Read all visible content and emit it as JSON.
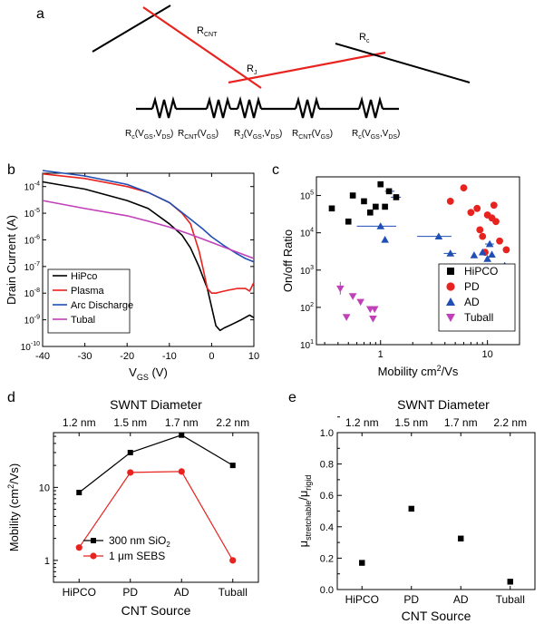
{
  "panel_letters": {
    "a": "a",
    "b": "b",
    "c": "c",
    "d": "d",
    "e": "e"
  },
  "schematic": {
    "resistor_labels": {
      "rc_left": {
        "R": "R",
        "sub": "c",
        "args": "(V",
        "a1": "GS",
        "comma": ",V",
        "a2": "DS",
        "close": ")"
      },
      "rcnt_left": {
        "R": "R",
        "sub": "CNT",
        "args": "(V",
        "a1": "GS",
        "close": ")"
      },
      "rj": {
        "R": "R",
        "sub": "J",
        "args": "(V",
        "a1": "GS",
        "comma": ",V",
        "a2": "DS",
        "close": ")"
      },
      "rcnt_right": {
        "R": "R",
        "sub": "CNT",
        "args": "(V",
        "a1": "GS",
        "close": ")"
      },
      "rc_right": {
        "R": "R",
        "sub": "c",
        "args": "(V",
        "a1": "GS",
        "comma": ",V",
        "a2": "DS",
        "close": ")"
      }
    },
    "tube_labels": {
      "rcnt": {
        "R": "R",
        "sub": "CNT"
      },
      "rj": {
        "R": "R",
        "sub": "J"
      },
      "rc": {
        "R": "R",
        "sub": "c"
      }
    },
    "colors": {
      "tube_red": "#e8231f",
      "tube_black": "#000000"
    }
  },
  "chart_data": [
    {
      "panel": "b",
      "type": "line",
      "xlabel": {
        "main": "V",
        "sub": "GS",
        "unit": " (V)"
      },
      "ylabel": "Drain Current (A)",
      "xlim": [
        -40,
        10
      ],
      "ylim_log10": [
        -10,
        -3.5
      ],
      "xticks": [
        -40,
        -30,
        -20,
        -10,
        0,
        10
      ],
      "yticks": [
        {
          "e": -4,
          "label": "10",
          "exp": "-4"
        },
        {
          "e": -5,
          "label": "10",
          "exp": "-5"
        },
        {
          "e": -6,
          "label": "10",
          "exp": "-6"
        },
        {
          "e": -7,
          "label": "10",
          "exp": "-7"
        },
        {
          "e": -8,
          "label": "10",
          "exp": "-8"
        },
        {
          "e": -9,
          "label": "10",
          "exp": "-9"
        },
        {
          "e": -10,
          "label": "10",
          "exp": "-10"
        }
      ],
      "legend_position": "bottom-left",
      "series": [
        {
          "name": "HiPco",
          "color": "#000000",
          "x": [
            -40,
            -30,
            -20,
            -15,
            -10,
            -7,
            -5,
            -3,
            -1,
            0,
            1,
            2,
            3,
            5,
            7,
            9,
            10
          ],
          "y": [
            0.00015,
            8e-05,
            3e-05,
            1.5e-05,
            4e-06,
            1.5e-06,
            5e-07,
            1e-07,
            1.5e-08,
            3e-09,
            6e-10,
            4e-10,
            5e-10,
            7e-10,
            1e-09,
            1.5e-09,
            1.2e-09
          ]
        },
        {
          "name": "Plasma",
          "color": "#e8231f",
          "x": [
            -40,
            -30,
            -20,
            -15,
            -10,
            -7,
            -5,
            -3,
            -2,
            -1,
            0,
            1,
            2,
            4,
            6,
            8,
            9,
            10
          ],
          "y": [
            0.0003,
            0.0002,
            0.0001,
            6e-05,
            2.5e-05,
            1e-05,
            4e-06,
            4e-07,
            8e-08,
            1.5e-08,
            1e-08,
            1e-08,
            1.1e-08,
            1.3e-08,
            1.5e-08,
            1.5e-08,
            1.2e-08,
            2.5e-08
          ]
        },
        {
          "name": "Arc Discharge",
          "color": "#1f4eb4",
          "x": [
            -40,
            -30,
            -20,
            -15,
            -10,
            -5,
            -2,
            0,
            3,
            6,
            8,
            10
          ],
          "y": [
            0.0004,
            0.00025,
            0.00012,
            6e-05,
            2.5e-05,
            6e-06,
            2.5e-06,
            1.3e-06,
            6e-07,
            3e-07,
            2e-07,
            1.5e-07
          ]
        },
        {
          "name": "Tubal",
          "color": "#c040b8",
          "x": [
            -40,
            -30,
            -20,
            -15,
            -10,
            -5,
            0,
            5,
            10
          ],
          "y": [
            3e-05,
            1.5e-05,
            8e-06,
            5e-06,
            3e-06,
            1.6e-06,
            8e-07,
            4e-07,
            2e-07
          ]
        }
      ]
    },
    {
      "panel": "c",
      "type": "scatter",
      "xlabel": {
        "main": "Mobility cm",
        "sup": "2",
        "unit": "/Vs"
      },
      "ylabel": "On/off Ratio",
      "xlim_log10": [
        -0.6,
        1.3
      ],
      "ylim_log10": [
        1,
        5.5
      ],
      "xticks": [
        {
          "e": 0,
          "label": "1"
        },
        {
          "e": 1,
          "label": "10"
        }
      ],
      "yticks": [
        {
          "e": 1,
          "label": "10",
          "exp": "1"
        },
        {
          "e": 2,
          "label": "10",
          "exp": "2"
        },
        {
          "e": 3,
          "label": "10",
          "exp": "3"
        },
        {
          "e": 4,
          "label": "10",
          "exp": "4"
        },
        {
          "e": 5,
          "label": "10",
          "exp": "5"
        }
      ],
      "legend_position": "bottom-right",
      "series": [
        {
          "name": "HiPCO",
          "color": "#000000",
          "marker": "square",
          "x": [
            0.35,
            0.5,
            0.55,
            0.7,
            0.8,
            0.9,
            1.0,
            1.1,
            1.2,
            1.4
          ],
          "y": [
            45000,
            20000,
            100000,
            70000,
            35000,
            50000,
            200000,
            50000,
            130000,
            90000
          ]
        },
        {
          "name": "PD",
          "color": "#e8231f",
          "marker": "circle",
          "x": [
            4.5,
            6.0,
            7.0,
            8.0,
            8.5,
            9.0,
            9.5,
            10.0,
            11.0,
            11.5,
            12.0,
            13.0,
            15.0
          ],
          "y": [
            70000,
            160000,
            35000,
            45000,
            12000,
            8000,
            3000,
            30000,
            25000,
            55000,
            20000,
            6000,
            3500
          ]
        },
        {
          "name": "AD",
          "color": "#1f4eb4",
          "marker": "triangle",
          "x": [
            1.0,
            1.1,
            3.5,
            4.5,
            7.5,
            9.0,
            10.0,
            10.5,
            11.0,
            12.5,
            14.5
          ],
          "y": [
            15000,
            6500,
            8000,
            2800,
            2500,
            3000,
            2000,
            5000,
            2600,
            1000,
            1300
          ]
        },
        {
          "name": "Tuball",
          "color": "#c040b8",
          "marker": "triangle-down",
          "x": [
            0.42,
            0.48,
            0.55,
            0.65,
            0.8,
            0.85,
            0.88
          ],
          "y": [
            320,
            55,
            200,
            140,
            90,
            50,
            90
          ]
        }
      ]
    },
    {
      "panel": "d",
      "type": "line",
      "title": "SWNT Diameter",
      "top_ticks": [
        "1.2 nm",
        "1.5 nm",
        "1.7 nm",
        "2.2 nm"
      ],
      "categories": [
        "HiPCO",
        "PD",
        "AD",
        "Tuball"
      ],
      "xlabel": "CNT Source",
      "ylabel": {
        "main": "Mobility (cm",
        "sup": "2",
        "unit": "/Vs)"
      },
      "ylim_log10": [
        -0.3,
        1.75
      ],
      "yticks": [
        {
          "e": 0,
          "label": "1"
        },
        {
          "e": 1,
          "label": "10"
        }
      ],
      "legend_position": "bottom-center",
      "series": [
        {
          "name": "300 nm SiO",
          "name_sub": "2",
          "color": "#000000",
          "marker": "square",
          "values": [
            8.5,
            30,
            52,
            20
          ]
        },
        {
          "name": "1 μm SEBS",
          "color": "#e8231f",
          "marker": "circle",
          "values": [
            1.5,
            16,
            16.5,
            1.0
          ]
        }
      ]
    },
    {
      "panel": "e",
      "type": "scatter",
      "title": "SWNT Diameter",
      "top_ticks": [
        "1.2 nm",
        "1.5 nm",
        "1.7 nm",
        "2.2 nm"
      ],
      "categories": [
        "HiPCO",
        "PD",
        "AD",
        "Tuball"
      ],
      "xlabel": "CNT Source",
      "ylabel": {
        "mu1": "μ",
        "sub1": "stretchable",
        "slash": "/μ",
        "sub2": "rigid"
      },
      "ylim": [
        0,
        1.0
      ],
      "yticks": [
        "0.0",
        "0.2",
        "0.4",
        "0.6",
        "0.8",
        "1.0"
      ],
      "series": [
        {
          "color": "#000000",
          "marker": "square",
          "values": [
            0.17,
            0.515,
            0.325,
            0.05
          ]
        }
      ]
    }
  ]
}
